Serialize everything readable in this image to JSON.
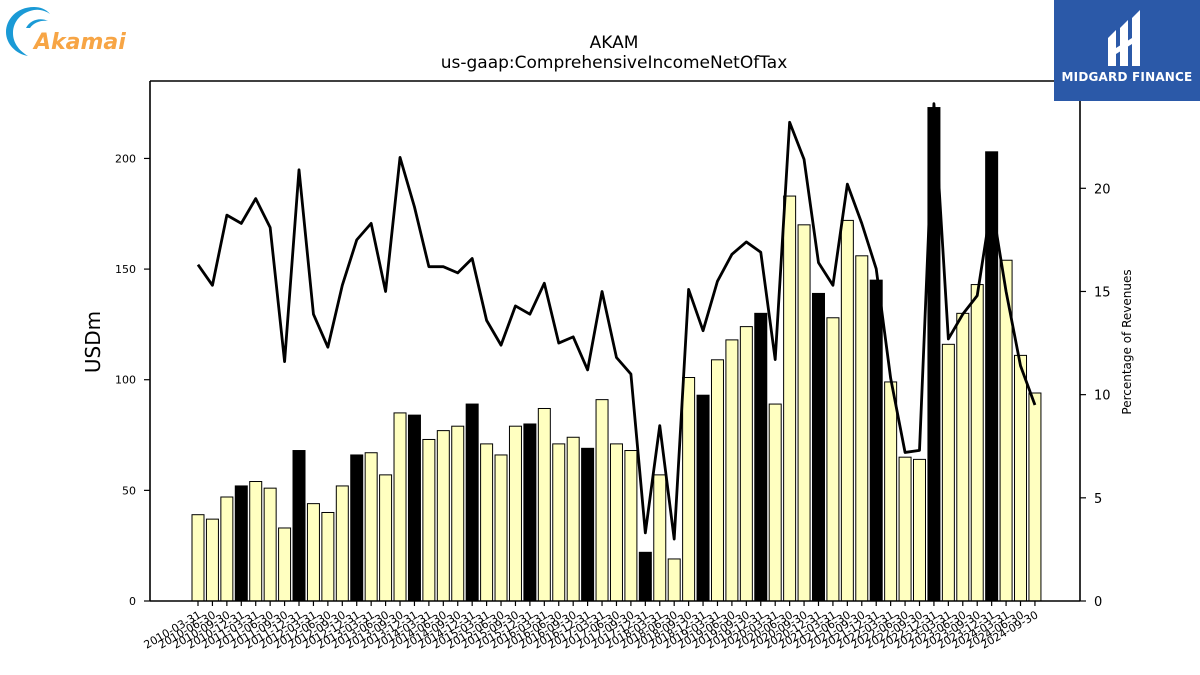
{
  "logos": {
    "left_brand": "Akamai",
    "right_brand": "MIDGARD FINANCE"
  },
  "colors": {
    "bar_normal": "#ffffc0",
    "bar_highlight": "#000000",
    "line": "#000000",
    "akamai_orange": "#f7a545",
    "akamai_blue": "#1a9ad6",
    "midgard_blue": "#2b59a8"
  },
  "chart_data": {
    "type": "bar",
    "title": "AKAM",
    "subtitle": "us-gaap:ComprehensiveIncomeNetOfTax",
    "ylabel": "USDm",
    "y2label": "Percentage of Revenues",
    "ylim": [
      0,
      235
    ],
    "y2lim": [
      0,
      25.2
    ],
    "yticks": [
      0,
      50,
      100,
      150,
      200
    ],
    "y2ticks": [
      0,
      5,
      10,
      15,
      20
    ],
    "grid": false,
    "categories": [
      "2010-03-31",
      "2010-06-30",
      "2010-09-30",
      "2010-12-31",
      "2011-03-31",
      "2011-06-30",
      "2011-09-30",
      "2011-12-31",
      "2012-03-31",
      "2012-06-30",
      "2012-09-30",
      "2012-12-31",
      "2013-03-31",
      "2013-06-30",
      "2013-09-30",
      "2013-12-31",
      "2014-03-31",
      "2014-06-30",
      "2014-09-30",
      "2014-12-31",
      "2015-03-31",
      "2015-06-30",
      "2015-09-30",
      "2015-12-31",
      "2016-03-31",
      "2016-06-30",
      "2016-09-30",
      "2016-12-31",
      "2017-03-31",
      "2017-06-30",
      "2017-09-30",
      "2017-12-31",
      "2018-03-31",
      "2018-06-30",
      "2018-09-30",
      "2018-12-31",
      "2019-03-31",
      "2019-06-30",
      "2019-09-30",
      "2019-12-31",
      "2020-03-31",
      "2020-06-30",
      "2020-09-30",
      "2020-12-31",
      "2021-03-31",
      "2021-06-30",
      "2021-09-30",
      "2021-12-31",
      "2022-03-31",
      "2022-06-30",
      "2022-09-30",
      "2022-12-31",
      "2023-03-31",
      "2023-06-30",
      "2023-09-30",
      "2023-12-31",
      "2024-03-31",
      "2024-06-30",
      "2024-09-30"
    ],
    "series": [
      {
        "type": "bar",
        "axis": "left",
        "values": [
          39,
          37,
          47,
          52,
          54,
          51,
          33,
          68,
          44,
          40,
          52,
          66,
          67,
          57,
          85,
          84,
          73,
          77,
          79,
          89,
          71,
          66,
          79,
          80,
          87,
          71,
          74,
          69,
          91,
          71,
          68,
          22,
          57,
          19,
          101,
          93,
          109,
          118,
          124,
          130,
          89,
          183,
          170,
          139,
          128,
          172,
          156,
          145,
          99,
          65,
          64,
          223,
          116,
          130,
          143,
          203,
          154,
          111,
          94
        ],
        "highlight": [
          3,
          7,
          11,
          15,
          19,
          23,
          27,
          31,
          35,
          39,
          43,
          47,
          51,
          55
        ]
      },
      {
        "type": "line",
        "axis": "right",
        "values": [
          16.3,
          15.3,
          18.7,
          18.3,
          19.5,
          18.1,
          11.6,
          20.9,
          13.9,
          12.3,
          15.3,
          17.5,
          18.3,
          15.0,
          21.5,
          19.1,
          16.2,
          16.2,
          15.9,
          16.6,
          13.6,
          12.4,
          14.3,
          13.9,
          15.4,
          12.5,
          12.8,
          11.2,
          15.0,
          11.8,
          11.0,
          3.3,
          8.5,
          3.0,
          15.1,
          13.1,
          15.5,
          16.8,
          17.4,
          16.9,
          11.7,
          23.2,
          21.4,
          16.4,
          15.3,
          20.2,
          18.3,
          16.1,
          10.8,
          7.2,
          7.3,
          24.1,
          12.7,
          13.9,
          14.8,
          19.3,
          15.0,
          11.4,
          9.5
        ]
      }
    ]
  }
}
